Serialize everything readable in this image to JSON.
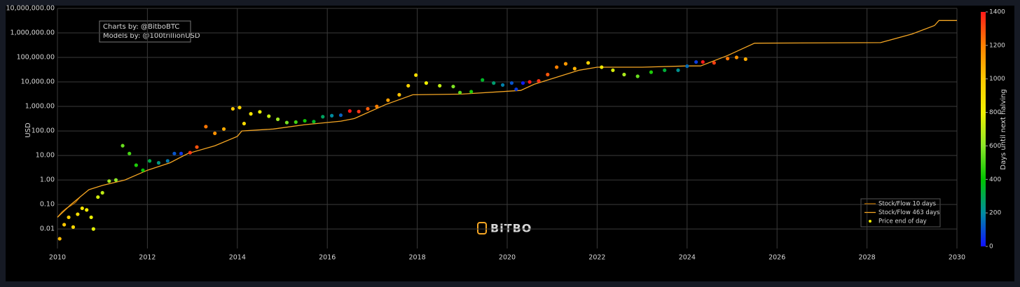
{
  "chart_data": {
    "type": "scatter",
    "annotations": [
      "Charts by: @BitboBTC",
      "Models by: @100trillionUSD"
    ],
    "logo": "BiTBO",
    "ylabel": "USD",
    "log_y": true,
    "grid": true,
    "legend": "bottom-right",
    "xlim": [
      2010,
      2030
    ],
    "xticks": [
      2010,
      2012,
      2014,
      2016,
      2018,
      2020,
      2022,
      2024,
      2026,
      2028,
      2030
    ],
    "ylim": [
      0.0016,
      10000000
    ],
    "yticks": [
      {
        "value": 0.01,
        "label": "0.01"
      },
      {
        "value": 0.1,
        "label": "0.10"
      },
      {
        "value": 1,
        "label": "1.00"
      },
      {
        "value": 10,
        "label": "10.00"
      },
      {
        "value": 100,
        "label": "100.00"
      },
      {
        "value": 1000,
        "label": "1,000.00"
      },
      {
        "value": 10000,
        "label": "10,000.00"
      },
      {
        "value": 100000,
        "label": "100,000.00"
      },
      {
        "value": 1000000,
        "label": "1,000,000.00"
      },
      {
        "value": 10000000,
        "label": "10,000,000.00"
      }
    ],
    "colorbar": {
      "label": "Days until next halving",
      "clim": [
        0,
        1400
      ],
      "ticks": [
        0,
        200,
        400,
        600,
        800,
        1000,
        1200,
        1400
      ],
      "colorscale": [
        "#1010ff",
        "#008ca0",
        "#00c400",
        "#8ce628",
        "#f0f000",
        "#ffc800",
        "#ff8000",
        "#ff1a1a"
      ]
    },
    "series": [
      {
        "name": "Stock/Flow 10 days",
        "kind": "line",
        "color": "#b36b00",
        "x": [
          2010.0,
          2010.1,
          2010.2,
          2010.3,
          2010.4,
          2010.5
        ],
        "values": [
          0.03,
          0.05,
          0.07,
          0.09,
          0.12,
          0.2
        ]
      },
      {
        "name": "Stock/Flow 463 days",
        "kind": "line",
        "color": "#f5a623",
        "x": [
          2010.0,
          2010.3,
          2010.7,
          2011.0,
          2011.5,
          2012.0,
          2012.5,
          2012.9,
          2013.5,
          2014.0,
          2014.1,
          2014.8,
          2015.5,
          2016.3,
          2016.6,
          2017.3,
          2017.9,
          2019.0,
          2020.3,
          2020.6,
          2021.6,
          2022.0,
          2023.0,
          2024.0,
          2024.3,
          2024.9,
          2025.5,
          2028.3,
          2029.0,
          2029.5,
          2029.6,
          2030.0
        ],
        "values": [
          0.03,
          0.1,
          0.4,
          0.6,
          1,
          2.5,
          5,
          12,
          25,
          60,
          100,
          120,
          180,
          250,
          320,
          1200,
          3000,
          3200,
          4500,
          8000,
          30000,
          40000,
          40000,
          45000,
          45000,
          120000,
          380000,
          400000,
          900000,
          2000000,
          3200000,
          3200000
        ]
      },
      {
        "name": "Price end of day",
        "kind": "points",
        "color": "#f0f000",
        "x": [
          2010.05,
          2010.15,
          2010.25,
          2010.35,
          2010.45,
          2010.55,
          2010.65,
          2010.75,
          2010.8,
          2010.9,
          2011.0,
          2011.15,
          2011.3,
          2011.45,
          2011.6,
          2011.75,
          2011.9,
          2012.05,
          2012.25,
          2012.45,
          2012.6,
          2012.75,
          2012.95,
          2013.1,
          2013.3,
          2013.5,
          2013.7,
          2013.9,
          2014.05,
          2014.15,
          2014.3,
          2014.5,
          2014.7,
          2014.9,
          2015.1,
          2015.3,
          2015.5,
          2015.7,
          2015.9,
          2016.1,
          2016.3,
          2016.5,
          2016.7,
          2016.9,
          2017.1,
          2017.35,
          2017.6,
          2017.8,
          2017.97,
          2018.2,
          2018.5,
          2018.8,
          2018.95,
          2019.2,
          2019.45,
          2019.7,
          2019.9,
          2020.1,
          2020.2,
          2020.35,
          2020.5,
          2020.7,
          2020.9,
          2021.1,
          2021.3,
          2021.5,
          2021.8,
          2022.1,
          2022.35,
          2022.6,
          2022.9,
          2023.2,
          2023.5,
          2023.8,
          2024.0,
          2024.2,
          2024.35,
          2024.6,
          2024.9,
          2025.1,
          2025.3
        ],
        "values": [
          0.004,
          0.015,
          0.03,
          0.012,
          0.04,
          0.07,
          0.06,
          0.03,
          0.01,
          0.2,
          0.3,
          0.9,
          1,
          25,
          12,
          4,
          2.5,
          6,
          5,
          6,
          12,
          12,
          13,
          22,
          150,
          80,
          120,
          800,
          900,
          200,
          500,
          600,
          400,
          300,
          220,
          230,
          260,
          240,
          380,
          420,
          440,
          650,
          620,
          800,
          1000,
          1800,
          3000,
          7000,
          19000,
          9000,
          7000,
          6500,
          3700,
          4000,
          12000,
          9000,
          7500,
          9000,
          5000,
          9000,
          10000,
          11000,
          20000,
          40000,
          55000,
          35000,
          60000,
          40000,
          30000,
          20000,
          17000,
          25000,
          30000,
          30000,
          44000,
          65000,
          65000,
          60000,
          90000,
          100000,
          85000
        ],
        "days": [
          1040,
          1000,
          970,
          930,
          900,
          860,
          820,
          790,
          770,
          740,
          700,
          640,
          600,
          550,
          500,
          440,
          390,
          310,
          240,
          170,
          110,
          55,
          1340,
          1290,
          1220,
          1150,
          1080,
          1000,
          950,
          910,
          860,
          790,
          720,
          640,
          570,
          490,
          420,
          350,
          280,
          200,
          130,
          1410,
          1350,
          1270,
          1200,
          1110,
          1020,
          950,
          890,
          800,
          700,
          580,
          530,
          440,
          350,
          260,
          180,
          110,
          70,
          20,
          1420,
          1350,
          1280,
          1200,
          1130,
          1060,
          950,
          840,
          750,
          660,
          550,
          440,
          330,
          220,
          150,
          70,
          1420,
          1330,
          1220,
          1150,
          1080
        ]
      }
    ]
  }
}
